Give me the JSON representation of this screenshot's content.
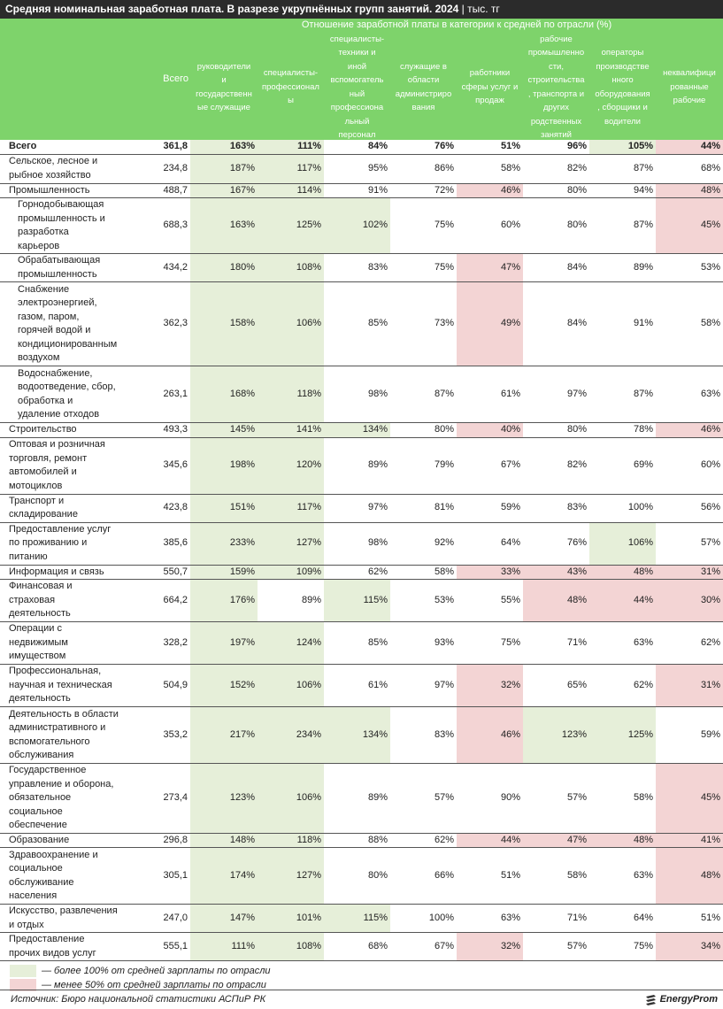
{
  "title": {
    "main": "Средняя номинальная заработная плата. В разрезе укрупнённых групп занятий. 2024",
    "sep": " | ",
    "unit": "тыс. тг"
  },
  "header": {
    "super": "Отношение заработной платы в категории к средней по отрасли (%)",
    "total": "Всего",
    "columns": [
      "руководители\nи\nгосударственн\nые служащие",
      "специалисты-\nпрофессионал\nы",
      "специалисты-\nтехники и\nиной\nвспомогатель\nный\nпрофессиона\nльный\nперсонал",
      "служащие в\nобласти\nадминистриро\nвания",
      "работники\nсферы услуг и\nпродаж",
      "рабочие\nпромышленно\nсти,\nстроительства\n, транспорта и\nдругих\nродственных\nзанятий",
      "операторы\nпроизводстве\nнного\nоборудования\n, сборщики и\nводители",
      "неквалифици\nрованные\nрабочие"
    ]
  },
  "rows": [
    {
      "label": "Всего",
      "total": "361,8",
      "v": [
        "163%",
        "111%",
        "84%",
        "76%",
        "51%",
        "96%",
        "105%",
        "44%"
      ]
    },
    {
      "label": "Сельское, лесное и\nрыбное хозяйство",
      "total": "234,8",
      "v": [
        "187%",
        "117%",
        "95%",
        "86%",
        "58%",
        "82%",
        "87%",
        "68%"
      ]
    },
    {
      "label": "Промышленность",
      "total": "488,7",
      "v": [
        "167%",
        "114%",
        "91%",
        "72%",
        "46%",
        "80%",
        "94%",
        "48%"
      ]
    },
    {
      "label": "Горнодобывающая\nпромышленность и\nразработка\nкарьеров",
      "total": "688,3",
      "v": [
        "163%",
        "125%",
        "102%",
        "75%",
        "60%",
        "80%",
        "87%",
        "45%"
      ]
    },
    {
      "label": "Обрабатывающая\nпромышленность",
      "total": "434,2",
      "v": [
        "180%",
        "108%",
        "83%",
        "75%",
        "47%",
        "84%",
        "89%",
        "53%"
      ]
    },
    {
      "label": "Снабжение\nэлектроэнергией,\nгазом, паром,\nгорячей водой и\nкондиционированным\nвоздухом",
      "total": "362,3",
      "v": [
        "158%",
        "106%",
        "85%",
        "73%",
        "49%",
        "84%",
        "91%",
        "58%"
      ]
    },
    {
      "label": "Водоснабжение,\nводоотведение, сбор,\nобработка и\nудаление отходов",
      "total": "263,1",
      "v": [
        "168%",
        "118%",
        "98%",
        "87%",
        "61%",
        "97%",
        "87%",
        "63%"
      ]
    },
    {
      "label": "Строительство",
      "total": "493,3",
      "v": [
        "145%",
        "141%",
        "134%",
        "80%",
        "40%",
        "80%",
        "78%",
        "46%"
      ]
    },
    {
      "label": "Оптовая и розничная\nторговля, ремонт\nавтомобилей и\nмотоциклов",
      "total": "345,6",
      "v": [
        "198%",
        "120%",
        "89%",
        "79%",
        "67%",
        "82%",
        "69%",
        "60%"
      ]
    },
    {
      "label": "Транспорт и\nскладирование",
      "total": "423,8",
      "v": [
        "151%",
        "117%",
        "97%",
        "81%",
        "59%",
        "83%",
        "100%",
        "56%"
      ]
    },
    {
      "label": "Предоставление услуг\nпо проживанию и\nпитанию",
      "total": "385,6",
      "v": [
        "233%",
        "127%",
        "98%",
        "92%",
        "64%",
        "76%",
        "106%",
        "57%"
      ]
    },
    {
      "label": "Информация и связь",
      "total": "550,7",
      "v": [
        "159%",
        "109%",
        "62%",
        "58%",
        "33%",
        "43%",
        "48%",
        "31%"
      ]
    },
    {
      "label": "Финансовая и\nстраховая\nдеятельность",
      "total": "664,2",
      "v": [
        "176%",
        "89%",
        "115%",
        "53%",
        "55%",
        "48%",
        "44%",
        "30%"
      ]
    },
    {
      "label": "Операции с\nнедвижимым\nимуществом",
      "total": "328,2",
      "v": [
        "197%",
        "124%",
        "85%",
        "93%",
        "75%",
        "71%",
        "63%",
        "62%"
      ]
    },
    {
      "label": "Профессиональная,\nнаучная и техническая\nдеятельность",
      "total": "504,9",
      "v": [
        "152%",
        "106%",
        "61%",
        "97%",
        "32%",
        "65%",
        "62%",
        "31%"
      ]
    },
    {
      "label": "Деятельность в области\nадминистративного и\nвспомогательного\nобслуживания",
      "total": "353,2",
      "v": [
        "217%",
        "234%",
        "134%",
        "83%",
        "46%",
        "123%",
        "125%",
        "59%"
      ]
    },
    {
      "label": "Государственное\nуправление и оборона,\nобязательное\nсоциальное\nобеспечение",
      "total": "273,4",
      "v": [
        "123%",
        "106%",
        "89%",
        "57%",
        "90%",
        "57%",
        "58%",
        "45%"
      ]
    },
    {
      "label": "Образование",
      "total": "296,8",
      "v": [
        "148%",
        "118%",
        "88%",
        "62%",
        "44%",
        "47%",
        "48%",
        "41%"
      ]
    },
    {
      "label": "Здравоохранение и\nсоциальное\nобслуживание\nнаселения",
      "total": "305,1",
      "v": [
        "174%",
        "127%",
        "80%",
        "66%",
        "51%",
        "58%",
        "63%",
        "48%"
      ]
    },
    {
      "label": "Искусство, развлечения\nи отдых",
      "total": "247,0",
      "v": [
        "147%",
        "101%",
        "115%",
        "100%",
        "63%",
        "71%",
        "64%",
        "51%"
      ]
    },
    {
      "label": "Предоставление\nпрочих видов услуг",
      "total": "555,1",
      "v": [
        "111%",
        "108%",
        "68%",
        "67%",
        "32%",
        "57%",
        "75%",
        "34%"
      ]
    }
  ],
  "legend": {
    "above": "— более 100% от средней зарплаты по отрасли",
    "below": "— менее 50% от средней зарплаты по отрасли"
  },
  "source": "Источник: Бюро национальной статистики АСПиР РК",
  "brand": "EnergyProm",
  "colors": {
    "header": "#7ed36b",
    "above": "#e6efd9",
    "below": "#f3d4d4",
    "title_bg": "#2b2b2b"
  }
}
